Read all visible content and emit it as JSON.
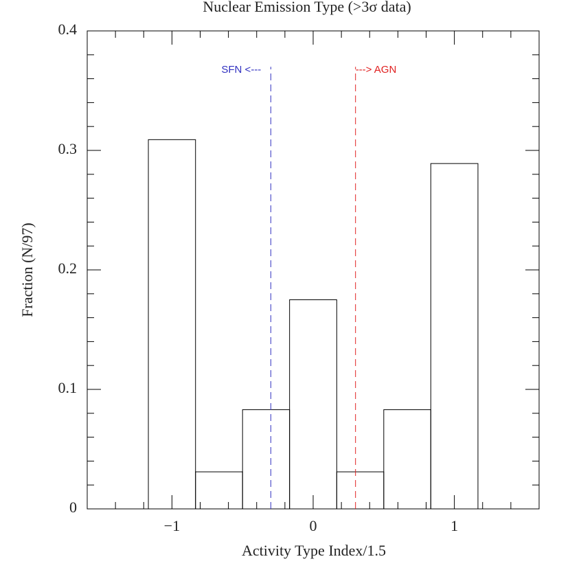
{
  "chart_data": {
    "type": "histogram",
    "title": "Nuclear Emission Type (>3σ data)",
    "xlabel": "Activity Type Index/1.5",
    "ylabel": "Fraction (N/97)",
    "bins": [
      -1.167,
      -0.833,
      -0.5,
      -0.167,
      0.167,
      0.5,
      0.833,
      1.167
    ],
    "values": [
      0.309,
      0.031,
      0.083,
      0.175,
      0.031,
      0.083,
      0.289
    ],
    "color": "#000000",
    "xlim": [
      -1.6,
      1.6
    ],
    "ylim": [
      0,
      0.4
    ],
    "xticks": [
      {
        "value": -1,
        "label": "−1"
      },
      0,
      1
    ],
    "yticks": [
      0,
      0.1,
      0.2,
      0.3,
      0.4
    ],
    "xminorticks": [
      -1.4,
      -1.2,
      -0.8,
      -0.6,
      -0.4,
      -0.2,
      0.2,
      0.4,
      0.6,
      0.8,
      1.2,
      1.4
    ],
    "yminorticks": [
      0.02,
      0.04,
      0.06,
      0.08,
      0.12,
      0.14,
      0.16,
      0.18,
      0.22,
      0.24,
      0.26,
      0.28,
      0.32,
      0.34,
      0.36,
      0.38
    ],
    "vlines": [
      {
        "x": -0.3,
        "top": 0.37,
        "color": "#3030c0",
        "label": "SFN <---"
      },
      {
        "x": 0.3,
        "top": 0.37,
        "color": "#e02020",
        "label": "---> AGN"
      }
    ]
  }
}
